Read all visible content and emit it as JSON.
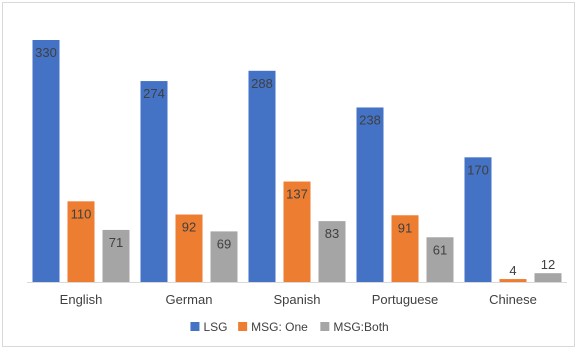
{
  "chart_data": {
    "type": "bar",
    "categories": [
      "English",
      "German",
      "Spanish",
      "Portuguese",
      "Chinese"
    ],
    "series": [
      {
        "name": "LSG",
        "values": [
          330,
          274,
          288,
          238,
          170
        ],
        "color": "#4472c4"
      },
      {
        "name": "MSG: One",
        "values": [
          110,
          92,
          137,
          91,
          4
        ],
        "color": "#ed7d31"
      },
      {
        "name": "MSG:Both",
        "values": [
          71,
          69,
          83,
          61,
          12
        ],
        "color": "#a5a5a5"
      }
    ],
    "title": "",
    "xlabel": "",
    "ylabel": "",
    "ylim": [
      0,
      330
    ],
    "grid": false,
    "legend_position": "bottom",
    "axis_color": "#d9d9d9"
  }
}
